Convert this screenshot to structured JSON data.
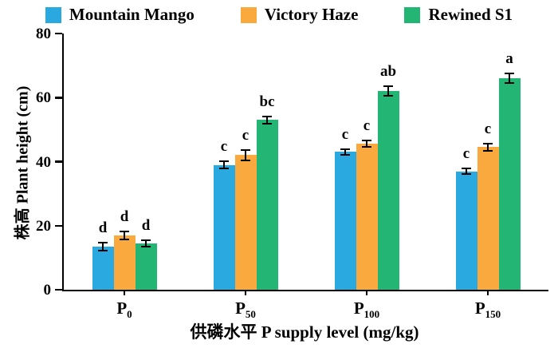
{
  "axes": {
    "xlabel": "供磷水平 P supply level (mg/kg)",
    "ylabel": "株高 Plant height (cm)"
  },
  "chart_data": {
    "type": "bar",
    "title": "",
    "xlabel": "供磷水平 P supply level (mg/kg)",
    "ylabel": "株高 Plant height (cm)",
    "ylim": [
      0,
      80
    ],
    "yticks": [
      0,
      20,
      40,
      60,
      80
    ],
    "grid": false,
    "legend_position": "top",
    "categories": [
      {
        "base": "P",
        "sub": "0"
      },
      {
        "base": "P",
        "sub": "50"
      },
      {
        "base": "P",
        "sub": "100"
      },
      {
        "base": "P",
        "sub": "150"
      }
    ],
    "series": [
      {
        "name": "Mountain Mango",
        "color": "#29A9E0",
        "values": [
          13.5,
          39,
          43,
          37
        ],
        "errors": [
          1.2,
          1.2,
          0.8,
          0.8
        ],
        "sig_letters": [
          "d",
          "c",
          "c",
          "c"
        ]
      },
      {
        "name": "Victory Haze",
        "color": "#F9A93D",
        "values": [
          17,
          42,
          45.5,
          44.5
        ],
        "errors": [
          1.2,
          1.5,
          1.0,
          1.2
        ],
        "sig_letters": [
          "d",
          "c",
          "c",
          "c"
        ]
      },
      {
        "name": "Rewined S1",
        "color": "#22B573",
        "values": [
          14.5,
          53,
          62,
          66
        ],
        "errors": [
          1.0,
          1.2,
          1.5,
          1.5
        ],
        "sig_letters": [
          "d",
          "bc",
          "ab",
          "a"
        ]
      }
    ]
  }
}
